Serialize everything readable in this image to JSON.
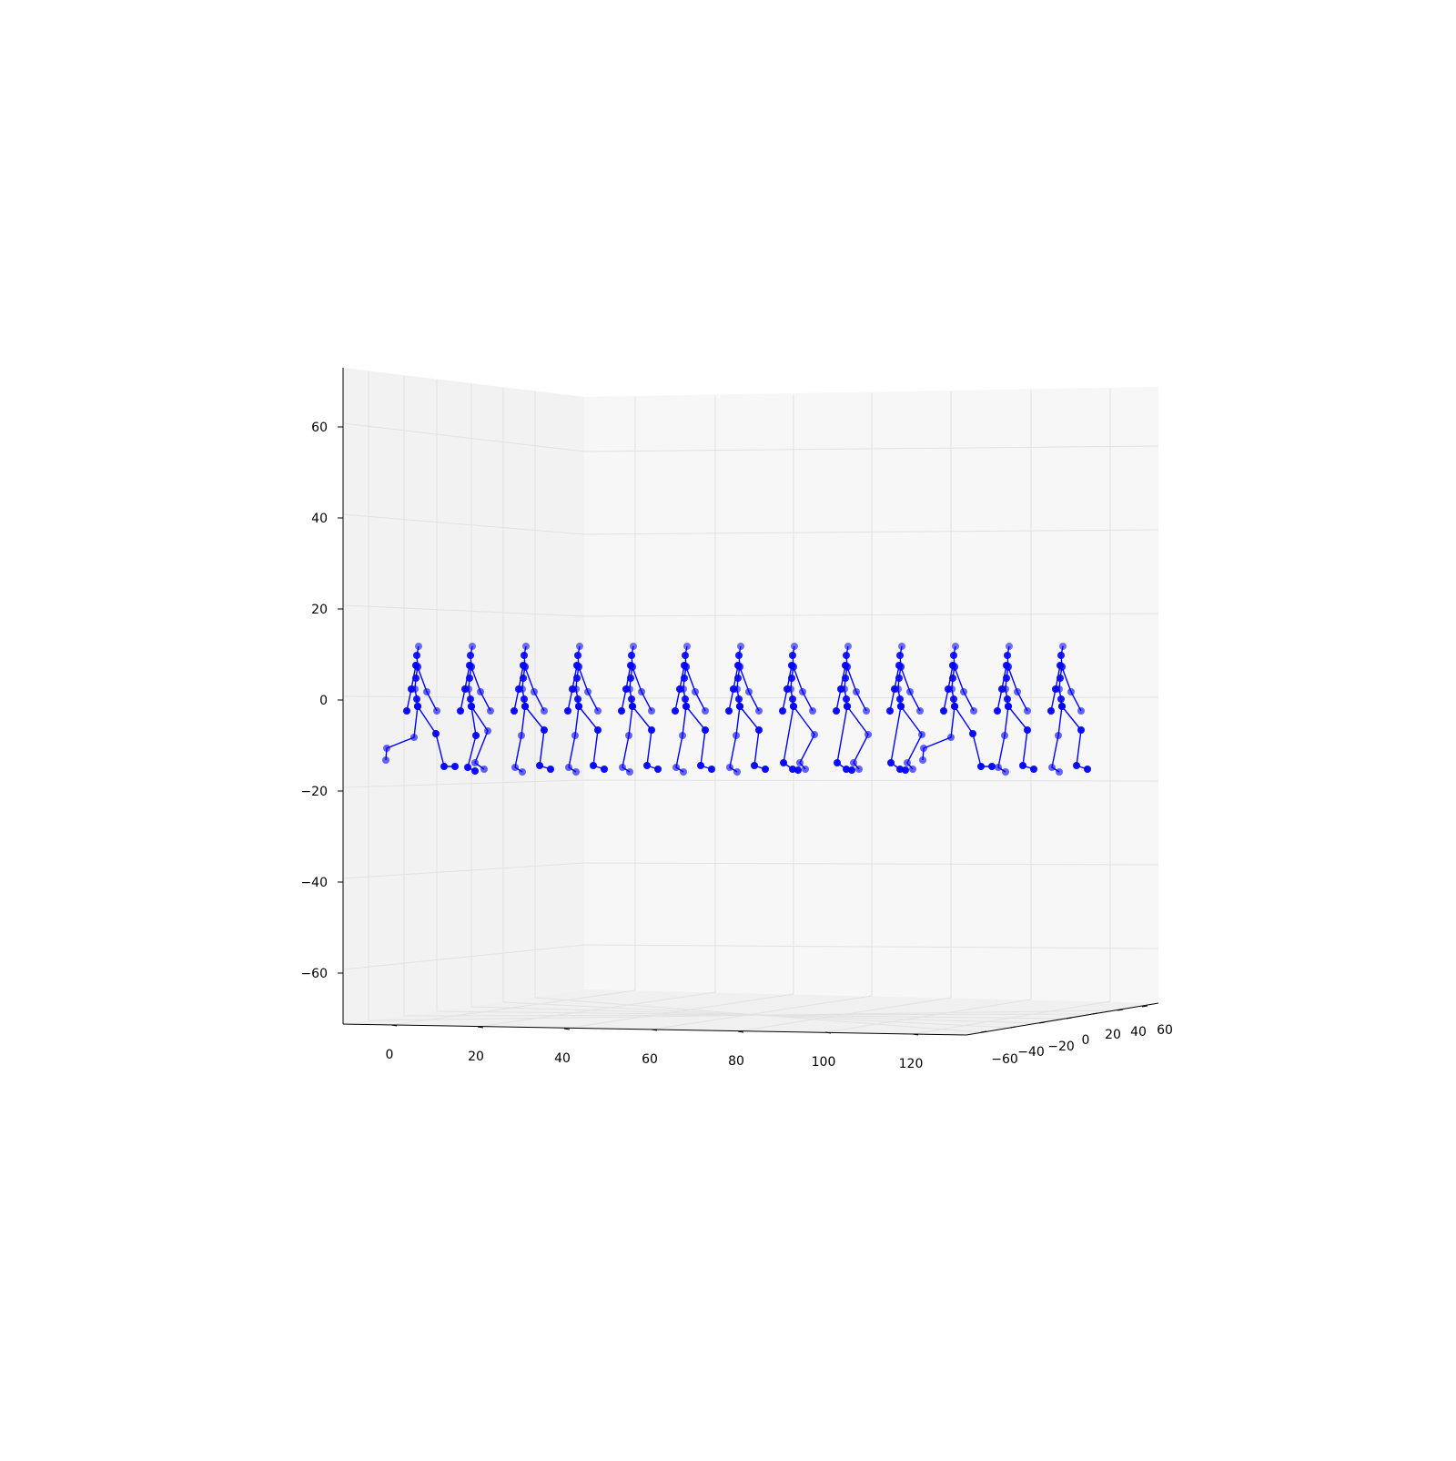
{
  "chart_data": {
    "type": "scatter",
    "projection": "3d",
    "title": "",
    "xlabel": "",
    "ylabel": "",
    "zlabel": "",
    "grid": true,
    "legend": false,
    "color": "#0000ff",
    "pane_colors": {
      "left": "#f2f2f2",
      "back": "#f7f7f7",
      "floor": "#f0f0f0"
    },
    "xlim": [
      -10,
      130
    ],
    "ylim": [
      -70,
      70
    ],
    "zlim": [
      -72,
      72
    ],
    "x_ticks": [
      "0",
      "20",
      "40",
      "60",
      "80",
      "100",
      "120"
    ],
    "y_ticks": [
      "60",
      "40",
      "20",
      "0",
      "−20",
      "−40",
      "−60"
    ],
    "z_ticks": [
      "60",
      "40",
      "20",
      "0",
      "−20",
      "−40",
      "−60"
    ],
    "series": [
      {
        "x": 0,
        "stance": "kick",
        "arms": "right"
      },
      {
        "x": 10,
        "stance": "mid",
        "arms": "both"
      },
      {
        "x": 20,
        "stance": "stride",
        "arms": "both"
      },
      {
        "x": 30,
        "stance": "stride",
        "arms": "both"
      },
      {
        "x": 40,
        "stance": "stride",
        "arms": "both"
      },
      {
        "x": 50,
        "stance": "stride",
        "arms": "both"
      },
      {
        "x": 60,
        "stance": "stride",
        "arms": "right"
      },
      {
        "x": 70,
        "stance": "cross",
        "arms": "right"
      },
      {
        "x": 80,
        "stance": "cross",
        "arms": "right"
      },
      {
        "x": 90,
        "stance": "cross",
        "arms": "right"
      },
      {
        "x": 100,
        "stance": "kick",
        "arms": "right"
      },
      {
        "x": 110,
        "stance": "stride",
        "arms": "both"
      },
      {
        "x": 120,
        "stance": "stride",
        "arms": "both"
      }
    ]
  }
}
